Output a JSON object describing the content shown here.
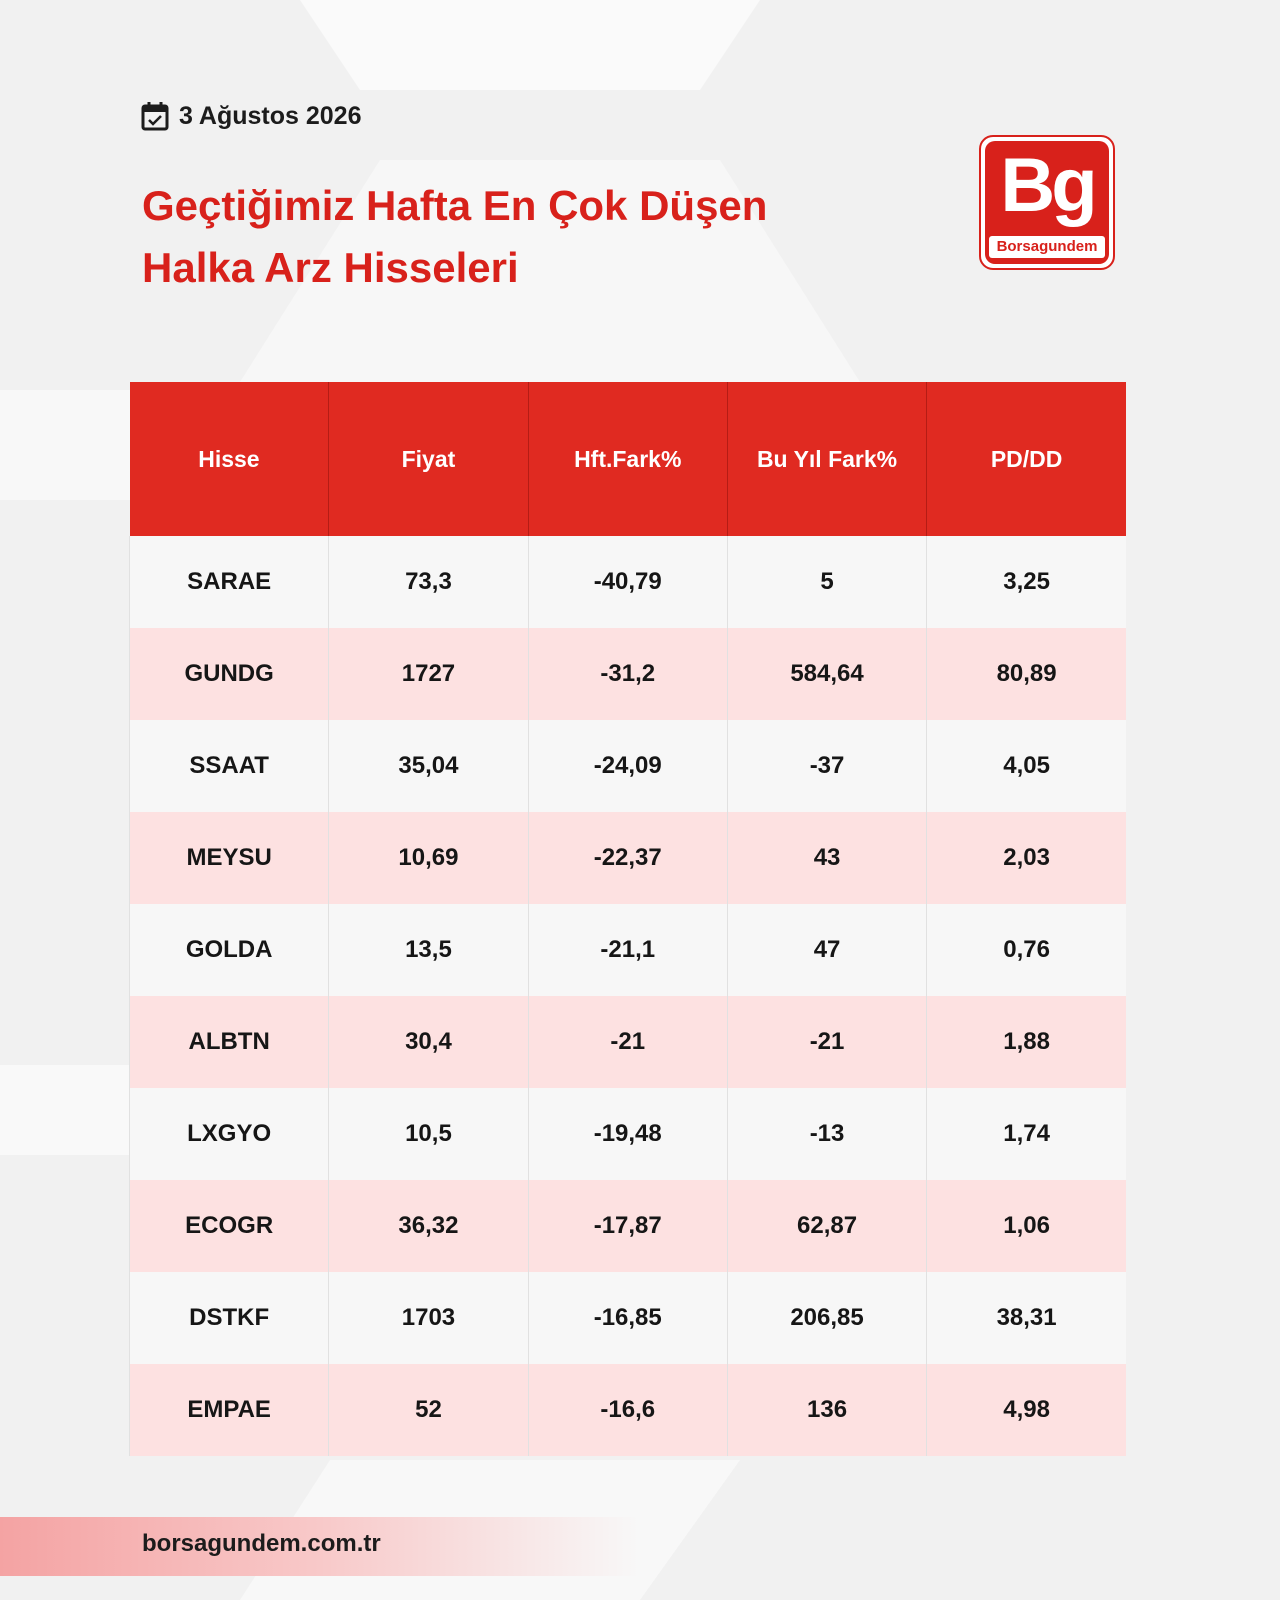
{
  "header": {
    "date": "3 Ağustos 2026",
    "title_lines": [
      "Geçtiğimiz Hafta En Çok Düşen",
      "Halka Arz Hisseleri"
    ],
    "logo_mark": "Bg",
    "logo_word": "Borsagundem"
  },
  "table": {
    "columns": [
      "Hisse",
      "Fiyat",
      "Hft.Fark%",
      "Bu Yıl Fark%",
      "PD/DD"
    ],
    "rows": [
      [
        "SARAE",
        "73,3",
        "-40,79",
        "5",
        "3,25"
      ],
      [
        "GUNDG",
        "1727",
        "-31,2",
        "584,64",
        "80,89"
      ],
      [
        "SSAAT",
        "35,04",
        "-24,09",
        "-37",
        "4,05"
      ],
      [
        "MEYSU",
        "10,69",
        "-22,37",
        "43",
        "2,03"
      ],
      [
        "GOLDA",
        "13,5",
        "-21,1",
        "47",
        "0,76"
      ],
      [
        "ALBTN",
        "30,4",
        "-21",
        "-21",
        "1,88"
      ],
      [
        "LXGYO",
        "10,5",
        "-19,48",
        "-13",
        "1,74"
      ],
      [
        "ECOGR",
        "36,32",
        "-17,87",
        "62,87",
        "1,06"
      ],
      [
        "DSTKF",
        "1703",
        "-16,85",
        "206,85",
        "38,31"
      ],
      [
        "EMPAE",
        "52",
        "-16,6",
        "136",
        "4,98"
      ]
    ]
  },
  "footer": {
    "url": "borsagundem.com.tr"
  }
}
